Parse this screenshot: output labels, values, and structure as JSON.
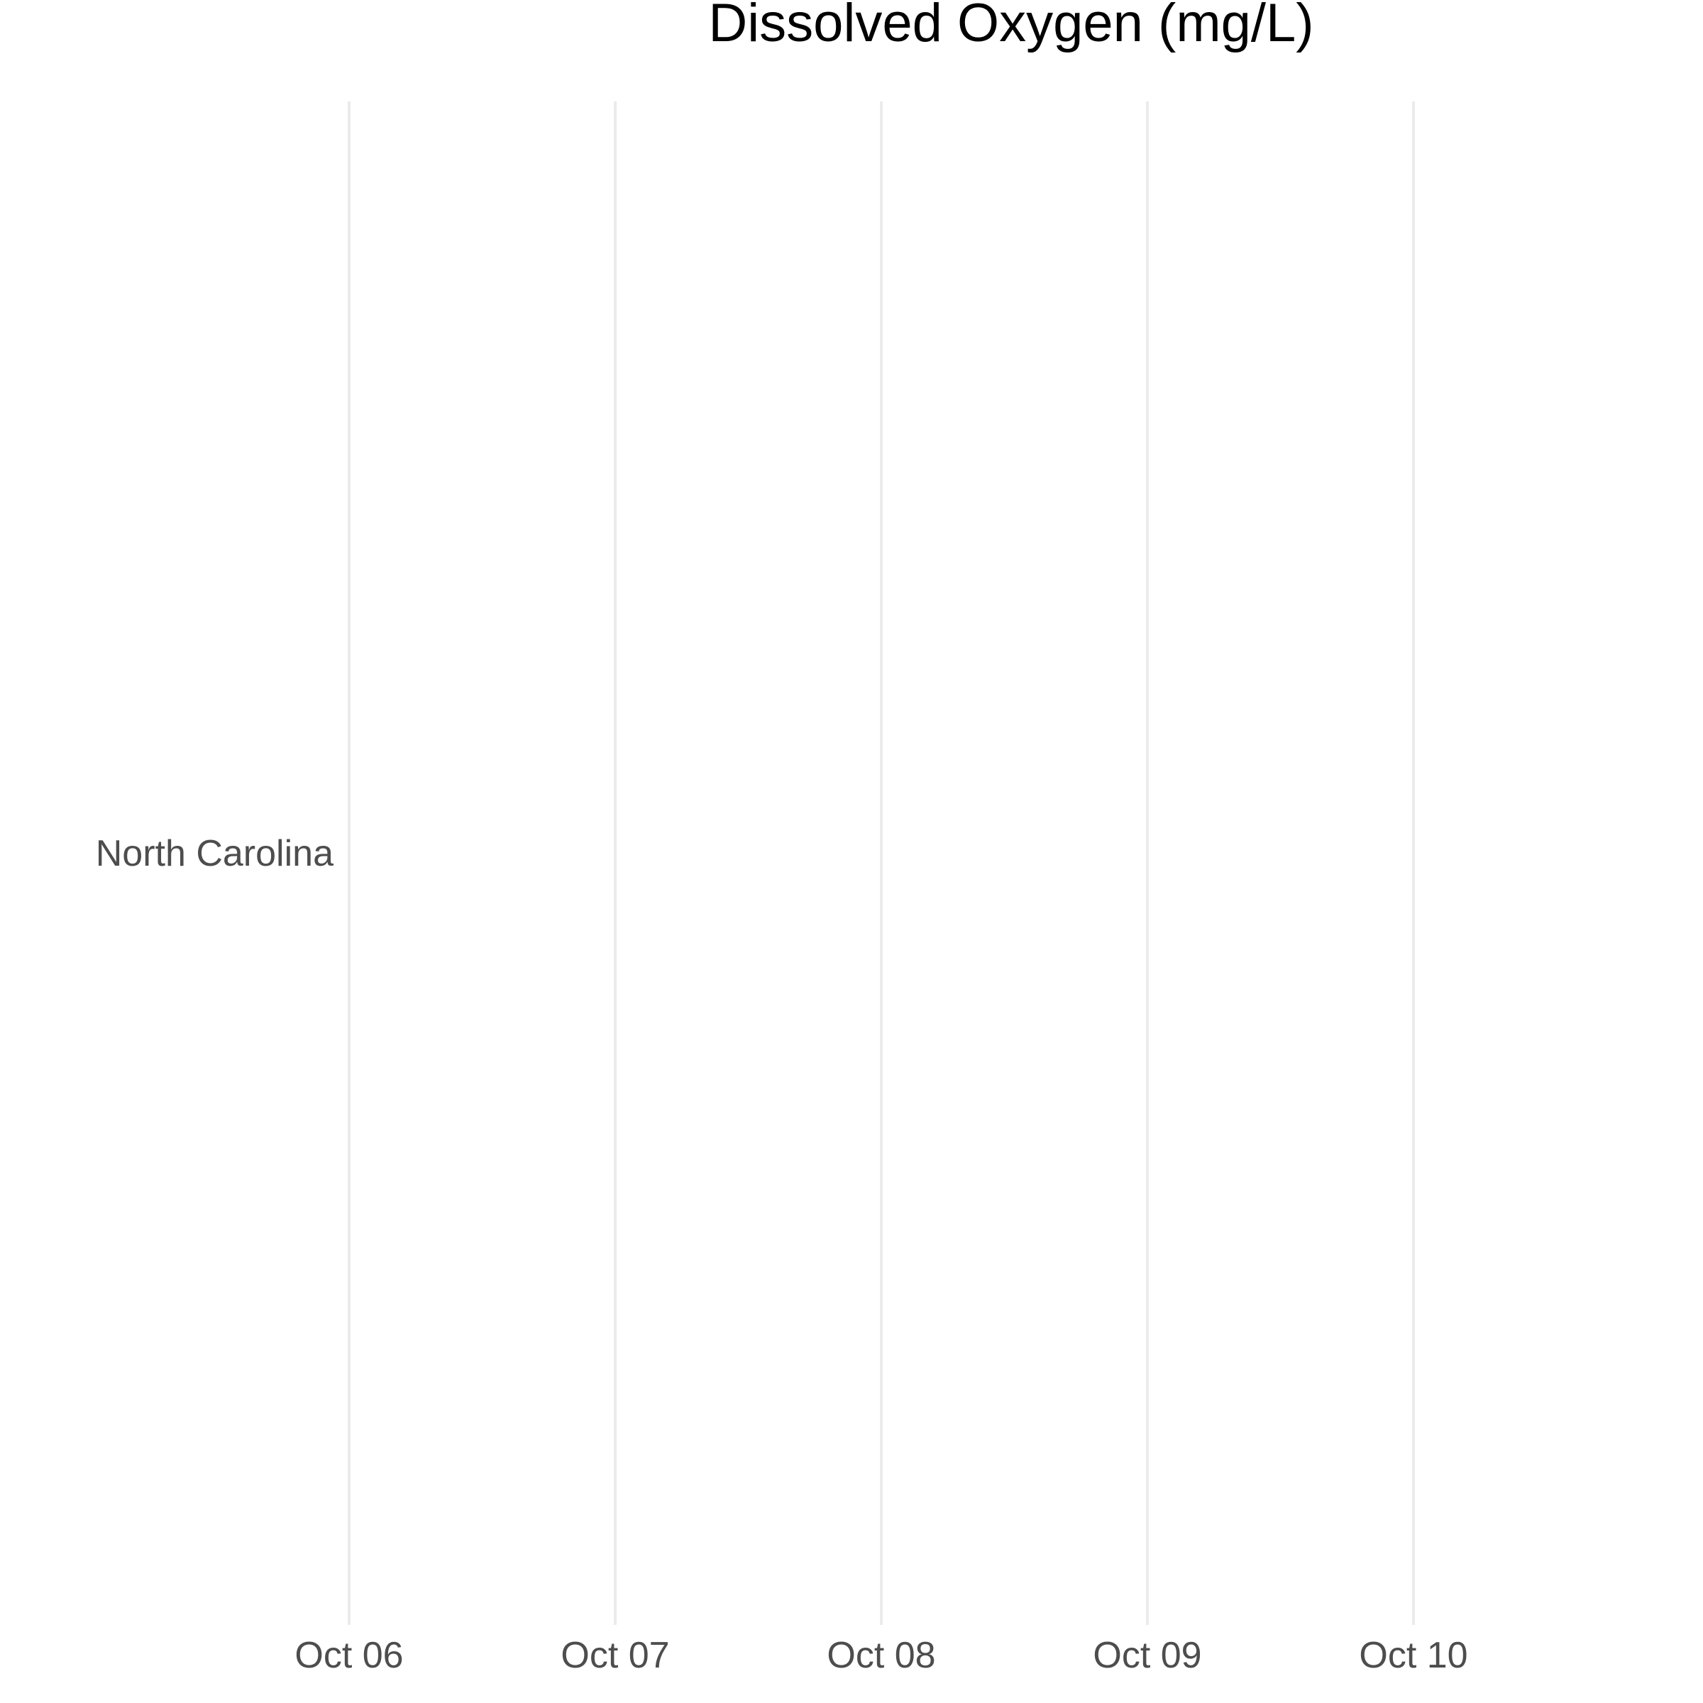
{
  "chart_data": {
    "type": "heatmap",
    "title": "Dissolved Oxygen (mg/L)",
    "xlabel": "",
    "ylabel": "",
    "x_axis": {
      "type": "date",
      "ticks": [
        "Oct 06",
        "Oct 07",
        "Oct 08",
        "Oct 09",
        "Oct 10"
      ],
      "range": [
        "Oct 06",
        "Oct 10"
      ]
    },
    "y_axis": {
      "type": "category",
      "categories": [
        "North Carolina"
      ]
    },
    "grid": {
      "vertical_major": true,
      "horizontal": false
    },
    "series": [],
    "legend": "none"
  },
  "colors": {
    "background": "#ffffff",
    "grid": "#ebebeb",
    "tick_text": "#4d4d4d",
    "title_text": "#000000"
  }
}
